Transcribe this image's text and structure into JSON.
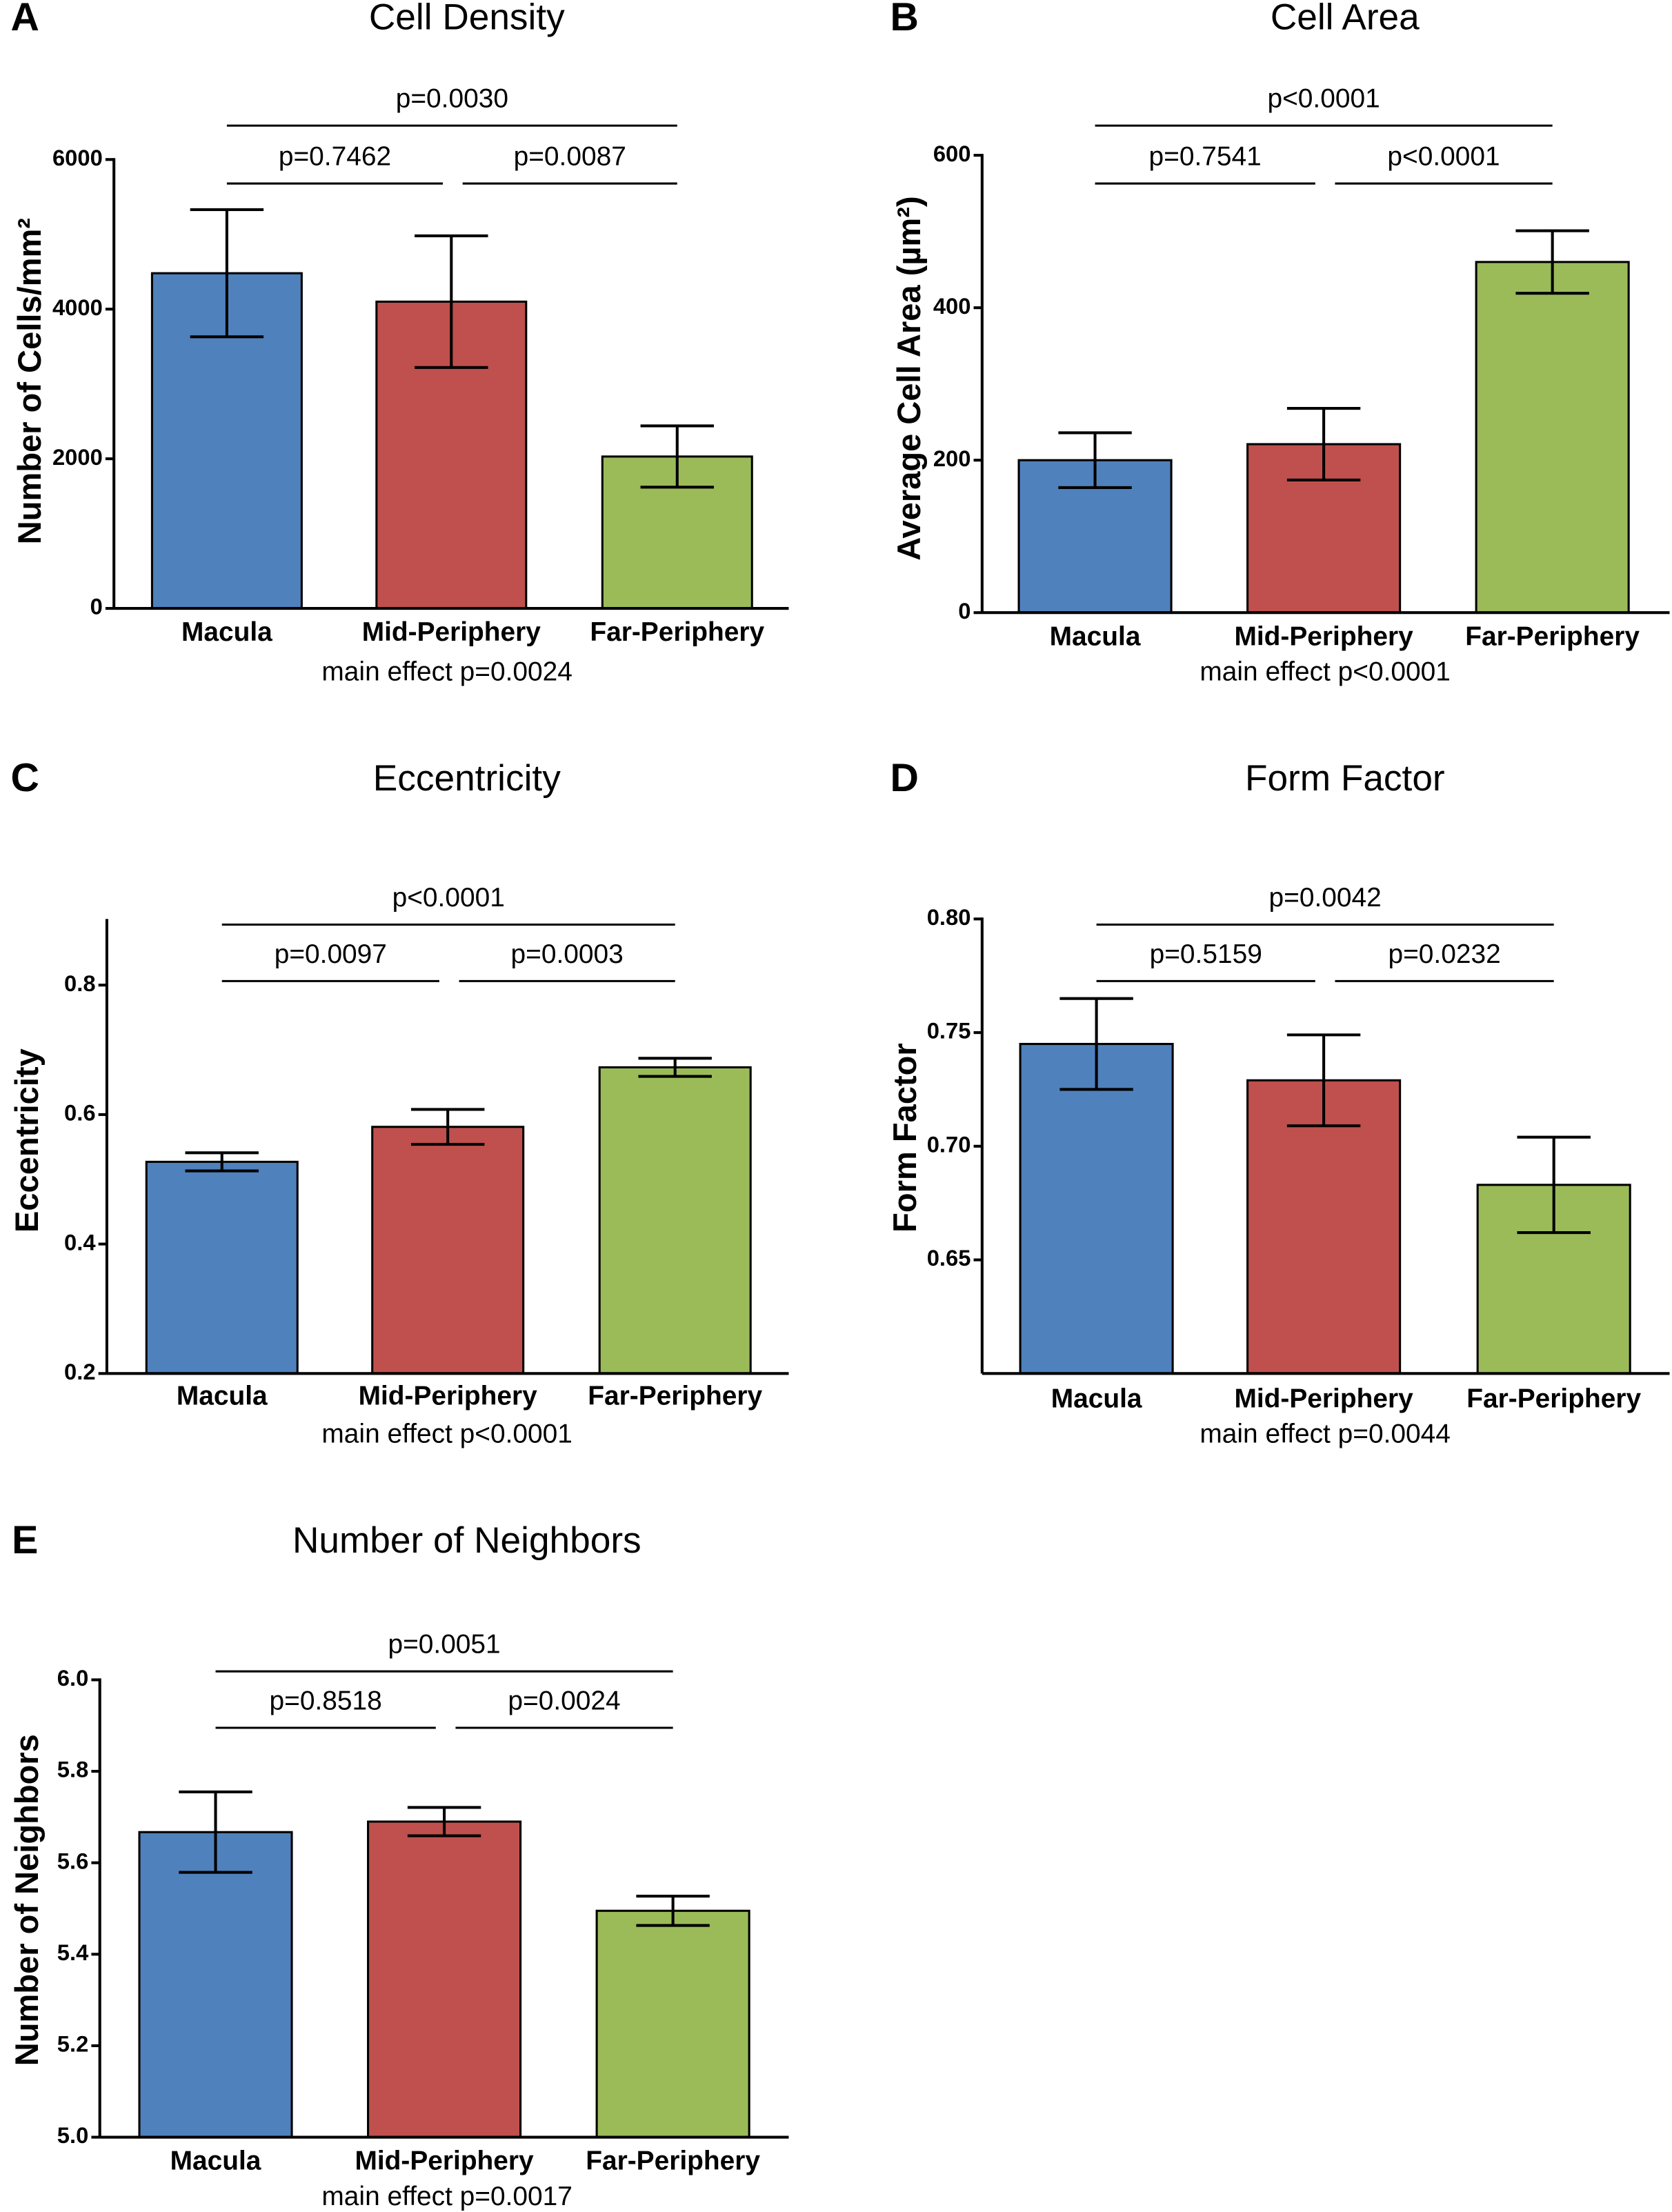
{
  "colors": {
    "Macula": "#4f81bd",
    "Mid-Periphery": "#c0504d",
    "Far-Periphery": "#9bbb59"
  },
  "chart_data": [
    {
      "type": "bar",
      "panel": "A",
      "title": "Cell Density",
      "ylabel": "Number of Cells/mm²",
      "ylim": [
        0,
        6000
      ],
      "yticks": [
        0,
        2000,
        4000,
        6000
      ],
      "ytick_labels": [
        "0",
        "2000",
        "4000",
        "6000"
      ],
      "categories": [
        "Macula",
        "Mid-Periphery",
        "Far-Periphery"
      ],
      "values": [
        4480,
        4100,
        2030
      ],
      "errors": [
        850,
        880,
        410
      ],
      "comparisons": [
        {
          "pair": [
            0,
            2
          ],
          "label": "p=0.0030"
        },
        {
          "pair": [
            0,
            1
          ],
          "label": "p=0.7462"
        },
        {
          "pair": [
            1,
            2
          ],
          "label": "p=0.0087"
        }
      ],
      "annotation": "main effect p=0.0024"
    },
    {
      "type": "bar",
      "panel": "B",
      "title": "Cell Area",
      "ylabel": "Average Cell  Area (µm²)",
      "ylim": [
        0,
        600
      ],
      "yticks": [
        0,
        200,
        400,
        600
      ],
      "ytick_labels": [
        "0",
        "200",
        "400",
        "600"
      ],
      "categories": [
        "Macula",
        "Mid-Periphery",
        "Far-Periphery"
      ],
      "values": [
        200,
        221,
        460
      ],
      "errors": [
        36,
        47,
        41
      ],
      "comparisons": [
        {
          "pair": [
            0,
            2
          ],
          "label": "p<0.0001"
        },
        {
          "pair": [
            0,
            1
          ],
          "label": "p=0.7541"
        },
        {
          "pair": [
            1,
            2
          ],
          "label": "p<0.0001"
        }
      ],
      "annotation": "main effect p<0.0001"
    },
    {
      "type": "bar",
      "panel": "C",
      "title": "Eccentricity",
      "ylabel": "Eccentricity",
      "ylim": [
        0.2,
        0.9
      ],
      "yticks": [
        0.2,
        0.4,
        0.6,
        0.8
      ],
      "ytick_labels": [
        "0.2",
        "0.4",
        "0.6",
        "0.8"
      ],
      "categories": [
        "Macula",
        "Mid-Periphery",
        "Far-Periphery"
      ],
      "values": [
        0.527,
        0.581,
        0.673
      ],
      "errors": [
        0.014,
        0.027,
        0.014
      ],
      "comparisons": [
        {
          "pair": [
            0,
            2
          ],
          "label": "p<0.0001"
        },
        {
          "pair": [
            0,
            1
          ],
          "label": "p=0.0097"
        },
        {
          "pair": [
            1,
            2
          ],
          "label": "p=0.0003"
        }
      ],
      "annotation": "main effect p<0.0001"
    },
    {
      "type": "bar",
      "panel": "D",
      "title": "Form Factor",
      "ylabel": "Form Factor",
      "ylim": [
        0.6,
        0.8
      ],
      "yticks": [
        0.65,
        0.7,
        0.75,
        0.8
      ],
      "ytick_labels": [
        "0.65",
        "0.70",
        "0.75",
        "0.80"
      ],
      "categories": [
        "Macula",
        "Mid-Periphery",
        "Far-Periphery"
      ],
      "values": [
        0.745,
        0.729,
        0.683
      ],
      "errors": [
        0.02,
        0.02,
        0.021
      ],
      "comparisons": [
        {
          "pair": [
            0,
            2
          ],
          "label": "p=0.0042"
        },
        {
          "pair": [
            0,
            1
          ],
          "label": "p=0.5159"
        },
        {
          "pair": [
            1,
            2
          ],
          "label": "p=0.0232"
        }
      ],
      "annotation": "main effect p=0.0044"
    },
    {
      "type": "bar",
      "panel": "E",
      "title": "Number of Neighbors",
      "ylabel": "Number of Neighbors",
      "ylim": [
        5.0,
        6.0
      ],
      "yticks": [
        5.0,
        5.2,
        5.4,
        5.6,
        5.8,
        6.0
      ],
      "ytick_labels": [
        "5.0",
        "5.2",
        "5.4",
        "5.6",
        "5.8",
        "6.0"
      ],
      "categories": [
        "Macula",
        "Mid-Periphery",
        "Far-Periphery"
      ],
      "values": [
        5.667,
        5.69,
        5.495
      ],
      "errors": [
        0.088,
        0.031,
        0.032
      ],
      "comparisons": [
        {
          "pair": [
            0,
            2
          ],
          "label": "p=0.0051"
        },
        {
          "pair": [
            0,
            1
          ],
          "label": "p=0.8518"
        },
        {
          "pair": [
            1,
            2
          ],
          "label": "p=0.0024"
        }
      ],
      "annotation": "main effect p=0.0017"
    }
  ]
}
